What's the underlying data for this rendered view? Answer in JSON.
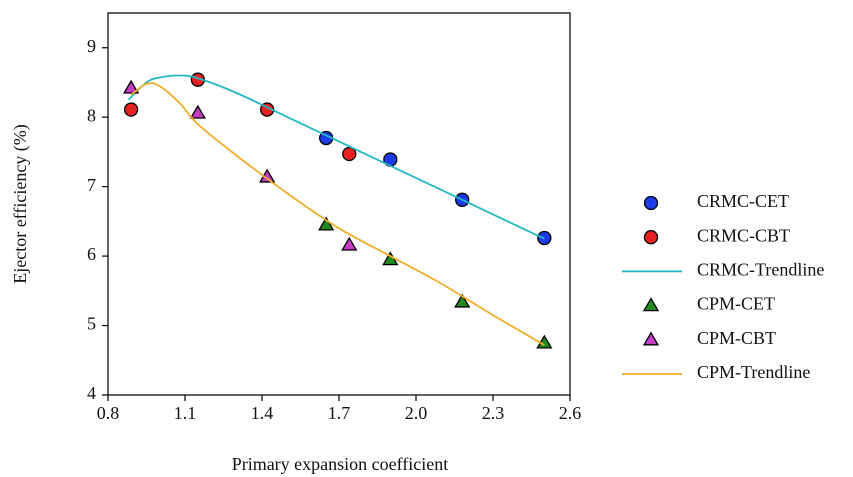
{
  "chart_data": {
    "type": "scatter",
    "x_label": "Primary expansion coefficient",
    "y_label": "Ejector efficiency (%)",
    "xlim": [
      0.8,
      2.6
    ],
    "xticks": [
      0.8,
      1.1,
      1.4,
      1.7,
      {
        "value": 2,
        "label": "2.0"
      },
      2.3,
      2.6
    ],
    "ylim": [
      4,
      9.5
    ],
    "yticks": [
      4,
      5,
      6,
      7,
      8,
      9
    ],
    "series": [
      {
        "name": "CRMC-CET",
        "kind": "scatter",
        "marker": "circle",
        "color": "#1c3be8",
        "x": [
          1.65,
          1.9,
          2.18,
          2.5
        ],
        "values": [
          7.7,
          7.39,
          6.81,
          6.26
        ]
      },
      {
        "name": "CRMC-CBT",
        "kind": "scatter",
        "marker": "circle",
        "color": "#e52222",
        "x": [
          0.89,
          1.15,
          1.42,
          1.74
        ],
        "values": [
          8.11,
          8.54,
          8.11,
          7.47
        ]
      },
      {
        "name": "CRMC-Trendline",
        "kind": "line",
        "color": "#22b8c4",
        "x": [
          0.88,
          0.95,
          1.0,
          1.08,
          1.15,
          1.3,
          1.5,
          1.7,
          1.9,
          2.1,
          2.3,
          2.5
        ],
        "values": [
          8.25,
          8.5,
          8.57,
          8.6,
          8.56,
          8.35,
          8.0,
          7.65,
          7.3,
          6.95,
          6.6,
          6.25
        ]
      },
      {
        "name": "CPM-CET",
        "kind": "scatter",
        "marker": "triangle",
        "color": "#1f8a1f",
        "x": [
          1.65,
          1.9,
          2.18,
          2.5
        ],
        "values": [
          6.45,
          5.95,
          5.34,
          4.75
        ]
      },
      {
        "name": "CPM-CBT",
        "kind": "scatter",
        "marker": "triangle",
        "color": "#c43cc4",
        "x": [
          0.89,
          1.15,
          1.42,
          1.74
        ],
        "values": [
          8.42,
          8.06,
          7.14,
          6.16
        ]
      },
      {
        "name": "CPM-Trendline",
        "kind": "line",
        "color": "#f0ae2c",
        "x": [
          0.89,
          0.95,
          1.0,
          1.08,
          1.15,
          1.3,
          1.5,
          1.7,
          1.9,
          2.1,
          2.3,
          2.5
        ],
        "values": [
          8.32,
          8.48,
          8.45,
          8.2,
          7.9,
          7.45,
          6.9,
          6.4,
          6.0,
          5.6,
          5.15,
          4.72
        ]
      }
    ]
  }
}
